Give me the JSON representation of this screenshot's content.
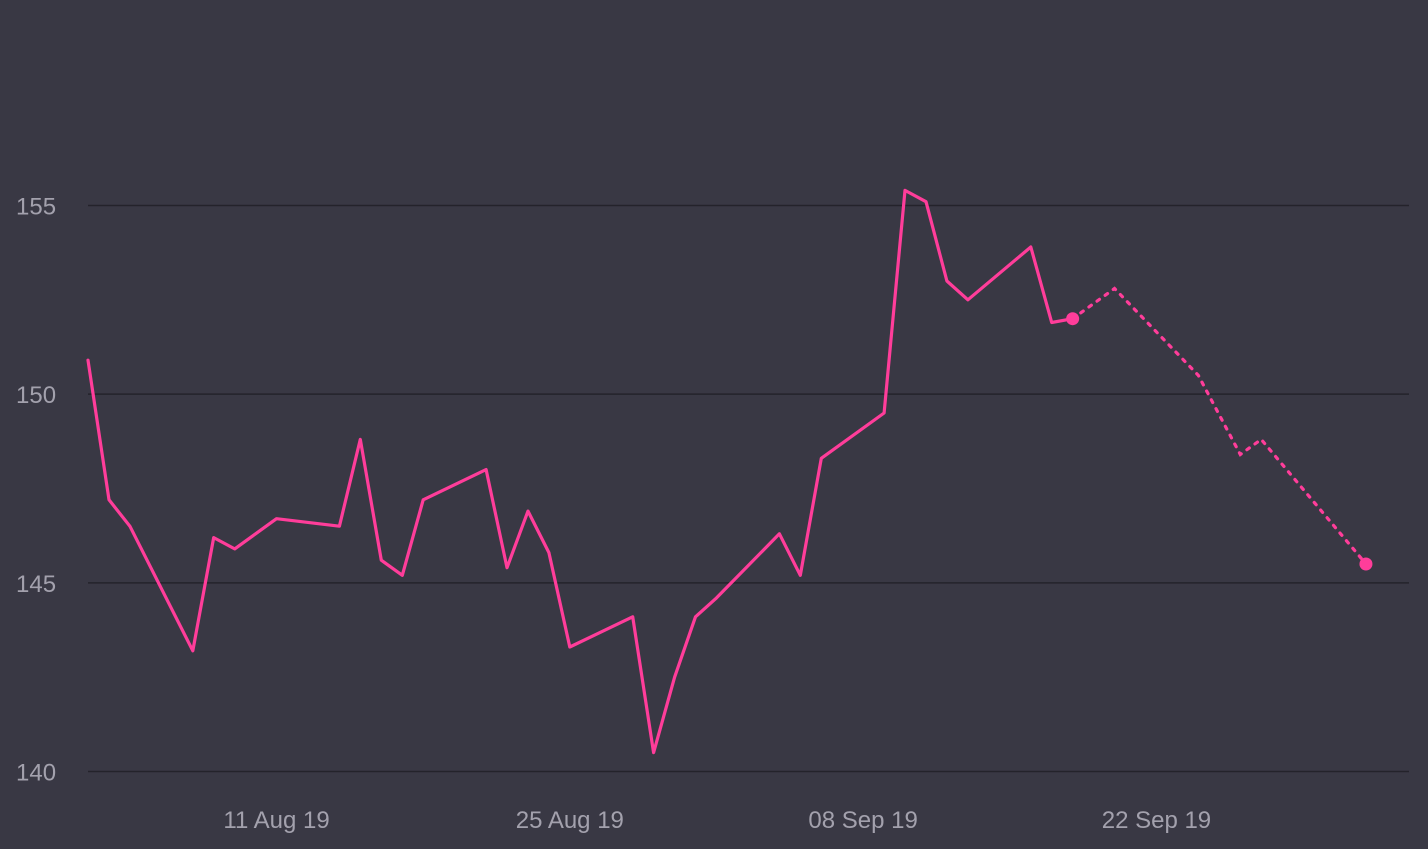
{
  "colors": {
    "background": "#393844",
    "series": "#ff3d9a",
    "grid": "#24232b",
    "tick_text": "#a3a1ad"
  },
  "chart_data": {
    "type": "line",
    "title": "",
    "xlabel": "",
    "ylabel": "",
    "grid": true,
    "legend": "none",
    "ylim": [
      140,
      157
    ],
    "xlim": [
      "2019-08-02",
      "2019-10-05"
    ],
    "y_ticks": [
      140,
      145,
      150,
      155
    ],
    "x_ticks": [
      {
        "date": "2019-08-11",
        "label": "11 Aug 19"
      },
      {
        "date": "2019-08-25",
        "label": "25 Aug 19"
      },
      {
        "date": "2019-09-08",
        "label": "08 Sep 19"
      },
      {
        "date": "2019-09-22",
        "label": "22 Sep 19"
      }
    ],
    "series": [
      {
        "style": "solid",
        "x": [
          "2019-08-02",
          "2019-08-03",
          "2019-08-04",
          "2019-08-07",
          "2019-08-08",
          "2019-08-09",
          "2019-08-10",
          "2019-08-11",
          "2019-08-14",
          "2019-08-15",
          "2019-08-16",
          "2019-08-17",
          "2019-08-18",
          "2019-08-21",
          "2019-08-22",
          "2019-08-23",
          "2019-08-24",
          "2019-08-25",
          "2019-08-28",
          "2019-08-29",
          "2019-08-30",
          "2019-08-31",
          "2019-09-01",
          "2019-09-04",
          "2019-09-05",
          "2019-09-06",
          "2019-09-09",
          "2019-09-10",
          "2019-09-11",
          "2019-09-12",
          "2019-09-13",
          "2019-09-16",
          "2019-09-17",
          "2019-09-18"
        ],
        "y": [
          150.9,
          147.2,
          146.5,
          143.2,
          146.2,
          145.9,
          146.3,
          146.7,
          146.5,
          148.8,
          145.6,
          145.2,
          147.2,
          148.0,
          145.4,
          146.9,
          145.8,
          143.3,
          144.1,
          140.5,
          142.5,
          144.1,
          144.6,
          146.3,
          145.2,
          148.3,
          149.5,
          155.4,
          155.1,
          153.0,
          152.5,
          153.9,
          151.9,
          152.0
        ]
      },
      {
        "style": "dotted",
        "x": [
          "2019-09-18",
          "2019-09-20",
          "2019-09-24",
          "2019-09-26",
          "2019-09-27",
          "2019-10-02"
        ],
        "y": [
          152.0,
          152.8,
          150.5,
          148.4,
          148.8,
          145.5
        ]
      }
    ],
    "markers": [
      {
        "x": "2019-09-18",
        "y": 152.0
      },
      {
        "x": "2019-10-02",
        "y": 145.5
      }
    ]
  }
}
